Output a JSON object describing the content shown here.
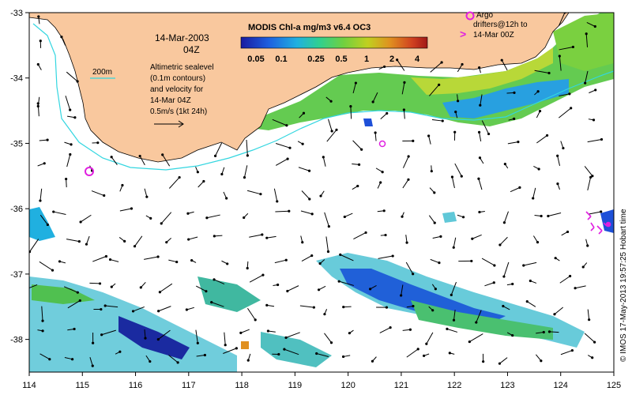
{
  "map": {
    "date_line": "14-Mar-2003",
    "hour_line": "04Z",
    "colorbar_title": "MODIS Chl-a mg/m3 v6.4 OC3",
    "colorbar_ticks": [
      "0.05",
      "0.1",
      "0.25",
      "0.5",
      "1",
      "2",
      "4"
    ],
    "isobath_label": "200m",
    "altimetry_lines": [
      "Altimetric sealevel",
      "(0.1m contours)",
      "and velocity for",
      "14-Mar 04Z",
      "0.5m/s (1kt 24h)"
    ],
    "argo_lines": [
      "Argo",
      "drifters@12h to",
      "14-Mar 00Z"
    ],
    "argo_drifter_marker": ">",
    "credit": "© IMOS 17-May-2013 19:57:25 Hobart time",
    "x_ticks": [
      "114",
      "115",
      "116",
      "117",
      "118",
      "119",
      "120",
      "121",
      "122",
      "123",
      "124",
      "125"
    ],
    "y_ticks": [
      "-33",
      "-34",
      "-35",
      "-36",
      "-37",
      "-38"
    ],
    "colors": {
      "land": "#f9c89e",
      "isobath": "#33d6e0",
      "argo": "#e020e0",
      "colorbar": [
        "#1a1aa0",
        "#1e50d8",
        "#1e90e8",
        "#20c0d0",
        "#30d080",
        "#60d040",
        "#a0d030",
        "#e0c020",
        "#e08020",
        "#d03020",
        "#a02020"
      ]
    }
  }
}
